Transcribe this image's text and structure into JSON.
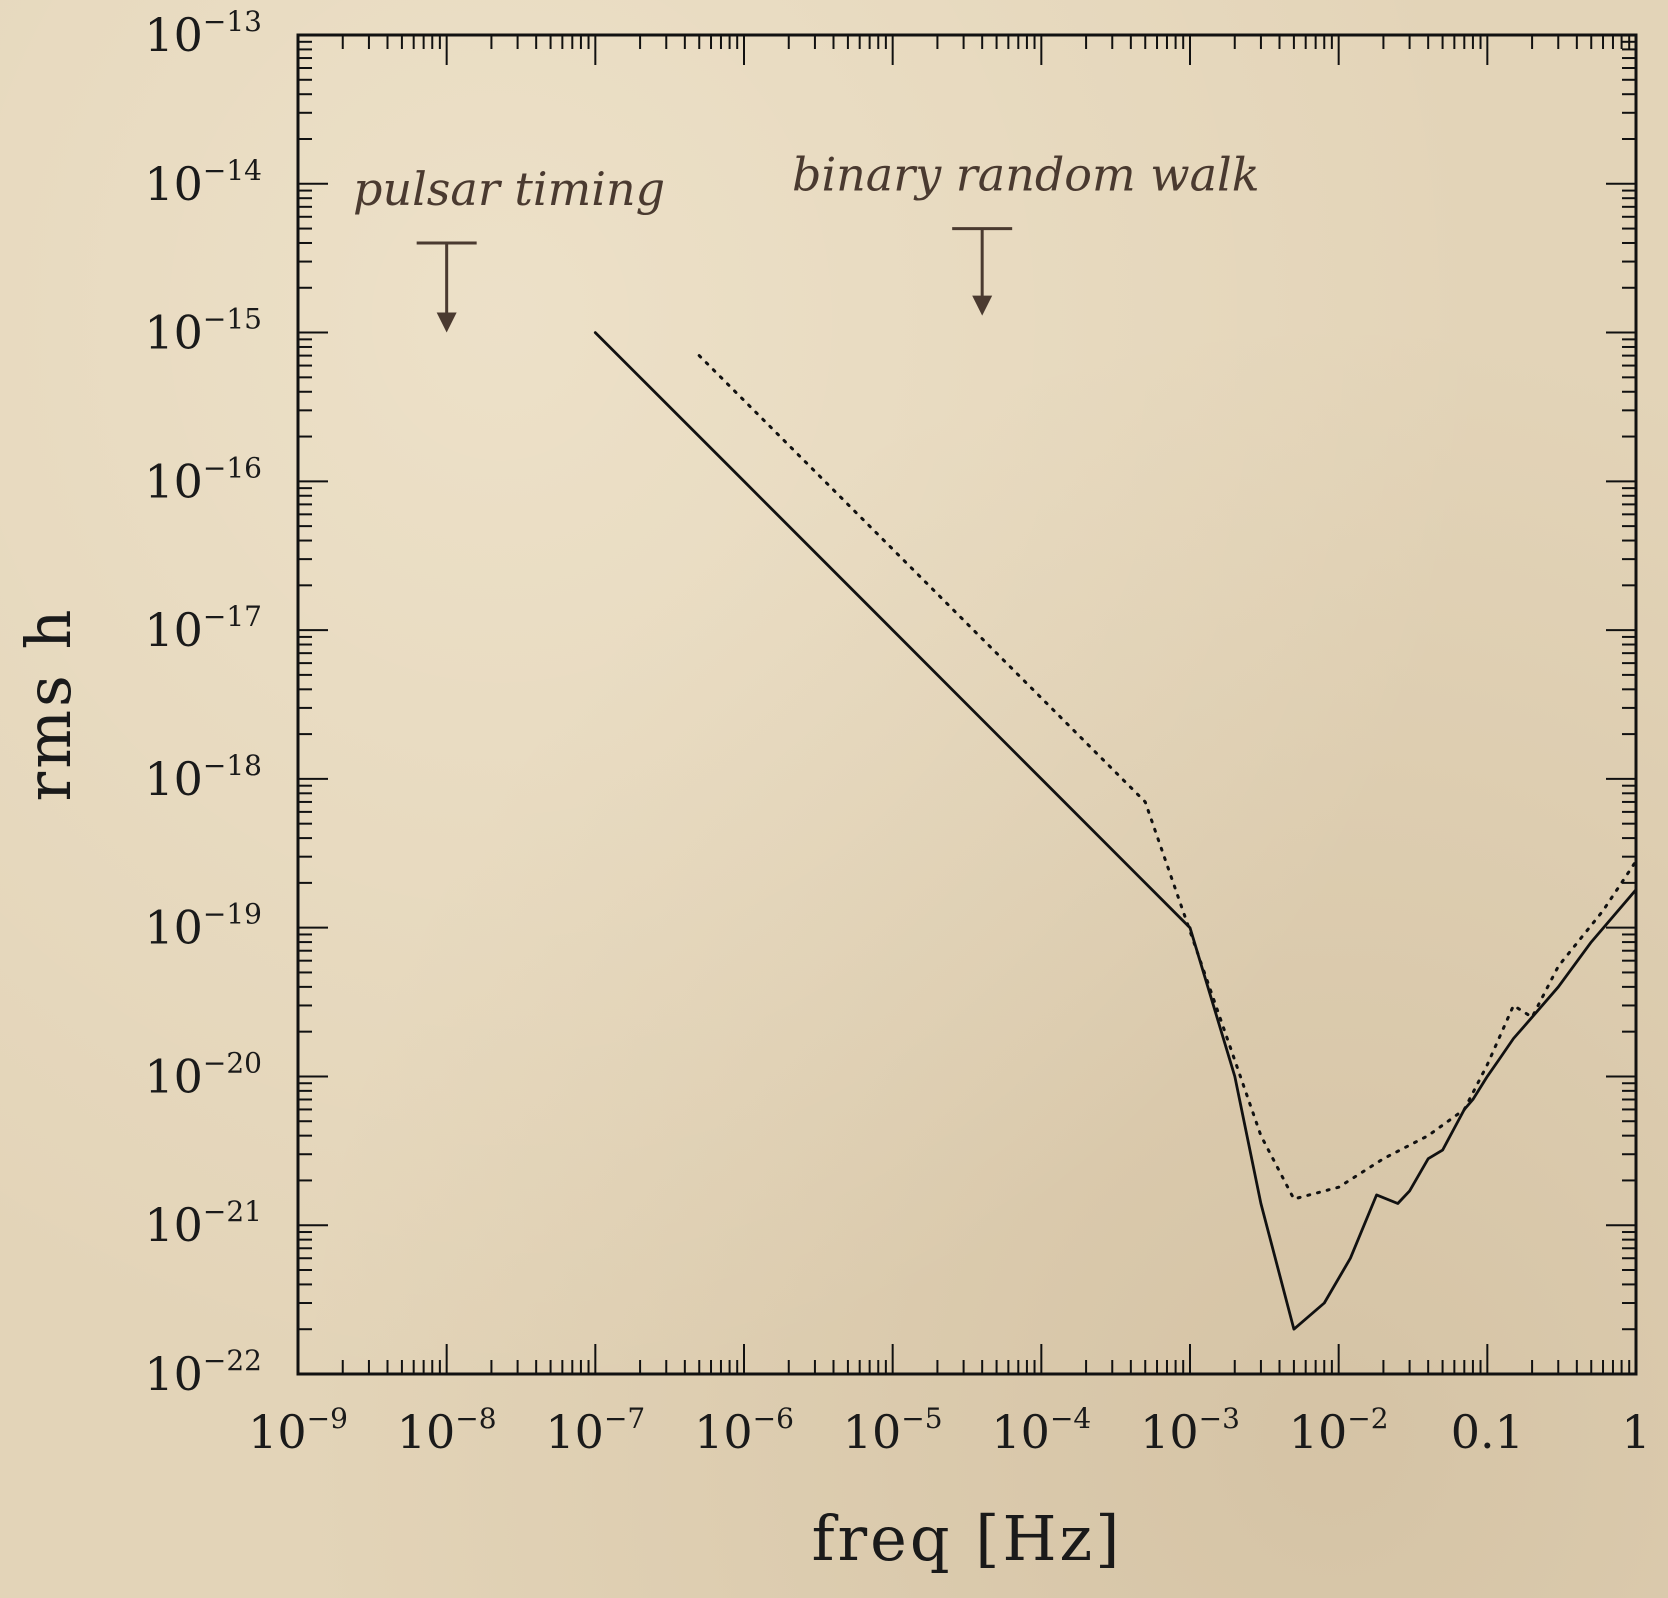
{
  "chart_data": {
    "type": "line",
    "xlabel": "freq [Hz]",
    "ylabel": "rms h",
    "xscale": "log",
    "yscale": "log",
    "xlim": [
      1e-09,
      1
    ],
    "ylim": [
      1e-22,
      1e-13
    ],
    "grid": false,
    "x_ticks": [
      {
        "base": "10",
        "exp": "−9",
        "value": 1e-09
      },
      {
        "base": "10",
        "exp": "−8",
        "value": 1e-08
      },
      {
        "base": "10",
        "exp": "−7",
        "value": 1e-07
      },
      {
        "base": "10",
        "exp": "−6",
        "value": 1e-06
      },
      {
        "base": "10",
        "exp": "−5",
        "value": 1e-05
      },
      {
        "base": "10",
        "exp": "−4",
        "value": 0.0001
      },
      {
        "base": "10",
        "exp": "−3",
        "value": 0.001
      },
      {
        "base": "10",
        "exp": "−2",
        "value": 0.01
      },
      {
        "base": "0.1",
        "exp": "",
        "value": 0.1
      },
      {
        "base": "1",
        "exp": "",
        "value": 1
      }
    ],
    "y_ticks": [
      {
        "base": "10",
        "exp": "−13",
        "value": 1e-13
      },
      {
        "base": "10",
        "exp": "−14",
        "value": 1e-14
      },
      {
        "base": "10",
        "exp": "−15",
        "value": 1e-15
      },
      {
        "base": "10",
        "exp": "−16",
        "value": 1e-16
      },
      {
        "base": "10",
        "exp": "−17",
        "value": 1e-17
      },
      {
        "base": "10",
        "exp": "−18",
        "value": 1e-18
      },
      {
        "base": "10",
        "exp": "−19",
        "value": 1e-19
      },
      {
        "base": "10",
        "exp": "−20",
        "value": 1e-20
      },
      {
        "base": "10",
        "exp": "−21",
        "value": 1e-21
      },
      {
        "base": "10",
        "exp": "−22",
        "value": 1e-22
      }
    ],
    "series": [
      {
        "style": "solid",
        "color": "#111111",
        "x": [
          1e-07,
          1e-06,
          1e-05,
          0.0001,
          0.001,
          0.002,
          0.003,
          0.005,
          0.008,
          0.012,
          0.018,
          0.025,
          0.03,
          0.04,
          0.05,
          0.06,
          0.07,
          0.08,
          0.1,
          0.12,
          0.15,
          0.2,
          0.3,
          0.5,
          1
        ],
        "y": [
          1e-15,
          1e-16,
          1e-17,
          1e-18,
          1e-19,
          1e-20,
          1.4e-21,
          2e-22,
          3e-22,
          6e-22,
          1.6e-21,
          1.4e-21,
          1.7e-21,
          2.8e-21,
          3.2e-21,
          4.5e-21,
          6e-21,
          7e-21,
          1e-20,
          1.3e-20,
          1.8e-20,
          2.5e-20,
          4e-20,
          8e-20,
          1.8e-19
        ]
      },
      {
        "style": "dotted",
        "color": "#111111",
        "x": [
          5e-07,
          5e-06,
          5e-05,
          0.0005,
          0.003,
          0.005,
          0.01,
          0.02,
          0.04,
          0.07,
          0.1,
          0.15,
          0.2,
          0.3,
          0.6,
          1
        ],
        "y": [
          7e-16,
          7e-17,
          7e-18,
          7e-19,
          4e-21,
          1.5e-21,
          1.8e-21,
          2.8e-21,
          4e-21,
          6e-21,
          1.2e-20,
          3e-20,
          2.5e-20,
          5.5e-20,
          1.3e-19,
          2.8e-19
        ]
      }
    ],
    "annotations": [
      {
        "text": "pulsar timing",
        "x": 1e-08,
        "y_top": 4e-15,
        "y_bottom": 1e-15
      },
      {
        "text": "binary random walk",
        "x": 4e-05,
        "y_top": 5e-15,
        "y_bottom": 1.3e-15
      }
    ]
  },
  "style": {
    "line_color": "#111111",
    "annotation_color": "#4a3a30"
  }
}
